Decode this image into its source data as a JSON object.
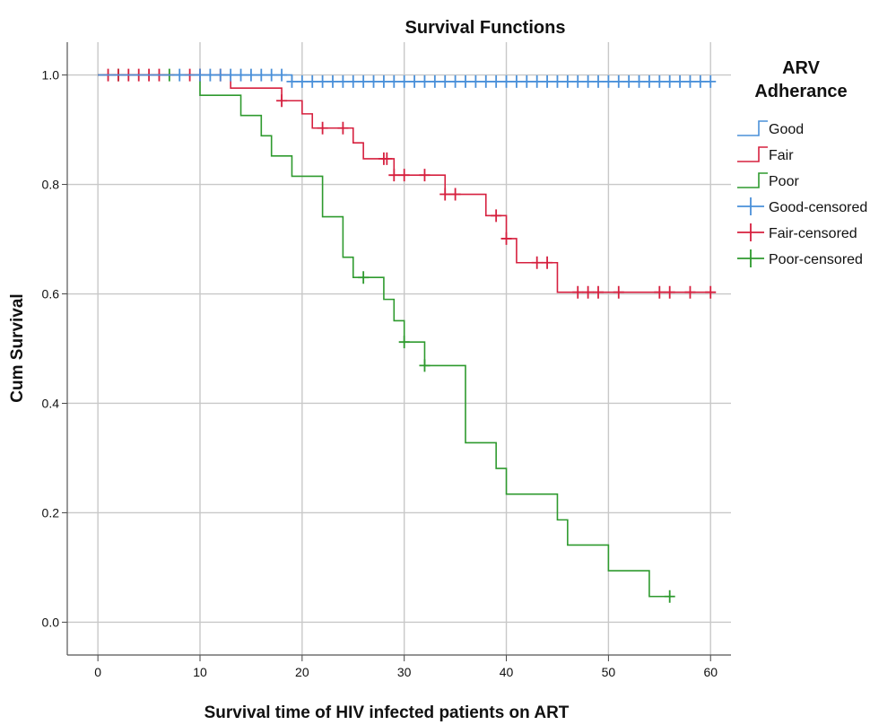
{
  "chart_data": {
    "type": "line",
    "title": "Survival Functions",
    "xlabel": "Survival time of HIV infected patients on ART",
    "ylabel": "Cum Survival",
    "xlim": [
      -3,
      62
    ],
    "ylim": [
      -0.06,
      1.06
    ],
    "x_ticks": [
      "0",
      "10",
      "20",
      "30",
      "40",
      "50",
      "60"
    ],
    "y_ticks": [
      "0.0",
      "0.2",
      "0.4",
      "0.6",
      "0.8",
      "1.0"
    ],
    "grid": true,
    "legend_title": [
      "ARV",
      "Adherance"
    ],
    "legend_position": "right",
    "legend": [
      "Good",
      "Fair",
      "Poor",
      "Good-censored",
      "Fair-censored",
      "Poor-censored"
    ],
    "colors": {
      "Good": "#4a90d9",
      "Fair": "#d6203f",
      "Poor": "#2e9a2e"
    },
    "series": [
      {
        "name": "Good",
        "steps": [
          [
            0,
            1.0
          ],
          [
            10,
            1.0
          ],
          [
            19,
            0.988
          ],
          [
            60,
            0.988
          ]
        ],
        "censored": [
          [
            8,
            1.0
          ],
          [
            10,
            1.0
          ],
          [
            11,
            1.0
          ],
          [
            12,
            1.0
          ],
          [
            13,
            1.0
          ],
          [
            14,
            1.0
          ],
          [
            15,
            1.0
          ],
          [
            16,
            1.0
          ],
          [
            17,
            1.0
          ],
          [
            18,
            1.0
          ],
          [
            19,
            0.988
          ],
          [
            20,
            0.988
          ],
          [
            21,
            0.988
          ],
          [
            22,
            0.988
          ],
          [
            23,
            0.988
          ],
          [
            24,
            0.988
          ],
          [
            25,
            0.988
          ],
          [
            26,
            0.988
          ],
          [
            27,
            0.988
          ],
          [
            28,
            0.988
          ],
          [
            29,
            0.988
          ],
          [
            30,
            0.988
          ],
          [
            31,
            0.988
          ],
          [
            32,
            0.988
          ],
          [
            33,
            0.988
          ],
          [
            34,
            0.988
          ],
          [
            35,
            0.988
          ],
          [
            36,
            0.988
          ],
          [
            37,
            0.988
          ],
          [
            38,
            0.988
          ],
          [
            39,
            0.988
          ],
          [
            40,
            0.988
          ],
          [
            41,
            0.988
          ],
          [
            42,
            0.988
          ],
          [
            43,
            0.988
          ],
          [
            44,
            0.988
          ],
          [
            45,
            0.988
          ],
          [
            46,
            0.988
          ],
          [
            47,
            0.988
          ],
          [
            48,
            0.988
          ],
          [
            49,
            0.988
          ],
          [
            50,
            0.988
          ],
          [
            51,
            0.988
          ],
          [
            52,
            0.988
          ],
          [
            53,
            0.988
          ],
          [
            54,
            0.988
          ],
          [
            55,
            0.988
          ],
          [
            56,
            0.988
          ],
          [
            57,
            0.988
          ],
          [
            58,
            0.988
          ],
          [
            59,
            0.988
          ],
          [
            60,
            0.988
          ]
        ]
      },
      {
        "name": "Fair",
        "steps": [
          [
            0,
            1.0
          ],
          [
            13,
            1.0
          ],
          [
            13,
            0.976
          ],
          [
            18,
            0.976
          ],
          [
            18,
            0.953
          ],
          [
            20,
            0.953
          ],
          [
            20,
            0.929
          ],
          [
            21,
            0.929
          ],
          [
            21,
            0.903
          ],
          [
            25,
            0.903
          ],
          [
            25,
            0.876
          ],
          [
            26,
            0.876
          ],
          [
            26,
            0.847
          ],
          [
            29,
            0.847
          ],
          [
            29,
            0.817
          ],
          [
            34,
            0.817
          ],
          [
            34,
            0.782
          ],
          [
            38,
            0.782
          ],
          [
            38,
            0.743
          ],
          [
            40,
            0.743
          ],
          [
            40,
            0.701
          ],
          [
            41,
            0.701
          ],
          [
            41,
            0.657
          ],
          [
            45,
            0.657
          ],
          [
            45,
            0.603
          ],
          [
            60,
            0.603
          ]
        ],
        "censored": [
          [
            1,
            1.0
          ],
          [
            2,
            1.0
          ],
          [
            3,
            1.0
          ],
          [
            4,
            1.0
          ],
          [
            5,
            1.0
          ],
          [
            6,
            1.0
          ],
          [
            9,
            1.0
          ],
          [
            10,
            1.0
          ],
          [
            12,
            1.0
          ],
          [
            18,
            0.953
          ],
          [
            22,
            0.903
          ],
          [
            24,
            0.903
          ],
          [
            28,
            0.847
          ],
          [
            28.3,
            0.847
          ],
          [
            29,
            0.817
          ],
          [
            30,
            0.817
          ],
          [
            32,
            0.817
          ],
          [
            34,
            0.782
          ],
          [
            35,
            0.782
          ],
          [
            39,
            0.743
          ],
          [
            40,
            0.701
          ],
          [
            43,
            0.657
          ],
          [
            44,
            0.657
          ],
          [
            47,
            0.603
          ],
          [
            48,
            0.603
          ],
          [
            49,
            0.603
          ],
          [
            51,
            0.603
          ],
          [
            55,
            0.603
          ],
          [
            56,
            0.603
          ],
          [
            58,
            0.603
          ],
          [
            60,
            0.603
          ]
        ]
      },
      {
        "name": "Poor",
        "steps": [
          [
            0,
            1.0
          ],
          [
            10,
            1.0
          ],
          [
            10,
            0.963
          ],
          [
            14,
            0.963
          ],
          [
            14,
            0.926
          ],
          [
            16,
            0.926
          ],
          [
            16,
            0.889
          ],
          [
            17,
            0.889
          ],
          [
            17,
            0.852
          ],
          [
            19,
            0.852
          ],
          [
            19,
            0.815
          ],
          [
            22,
            0.815
          ],
          [
            22,
            0.741
          ],
          [
            24,
            0.741
          ],
          [
            24,
            0.667
          ],
          [
            25,
            0.667
          ],
          [
            25,
            0.63
          ],
          [
            28,
            0.63
          ],
          [
            28,
            0.59
          ],
          [
            29,
            0.59
          ],
          [
            29,
            0.551
          ],
          [
            30,
            0.551
          ],
          [
            30,
            0.512
          ],
          [
            32,
            0.512
          ],
          [
            32,
            0.469
          ],
          [
            36,
            0.469
          ],
          [
            36,
            0.328
          ],
          [
            39,
            0.328
          ],
          [
            39,
            0.281
          ],
          [
            40,
            0.281
          ],
          [
            40,
            0.234
          ],
          [
            45,
            0.234
          ],
          [
            45,
            0.187
          ],
          [
            46,
            0.187
          ],
          [
            46,
            0.141
          ],
          [
            50,
            0.141
          ],
          [
            50,
            0.094
          ],
          [
            54,
            0.094
          ],
          [
            54,
            0.047
          ],
          [
            56,
            0.047
          ]
        ],
        "censored": [
          [
            2,
            1.0
          ],
          [
            7,
            1.0
          ],
          [
            26,
            0.63
          ],
          [
            30,
            0.512
          ],
          [
            32,
            0.469
          ],
          [
            56,
            0.047
          ]
        ]
      }
    ]
  }
}
